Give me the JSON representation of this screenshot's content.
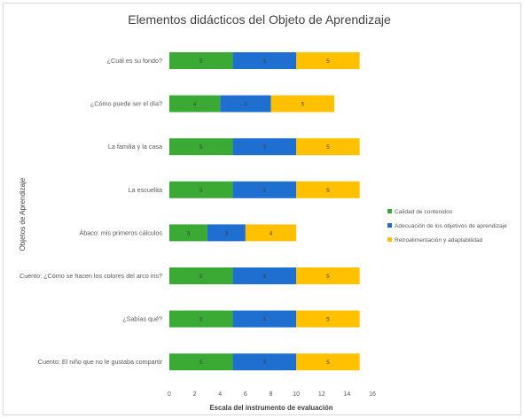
{
  "chart_data": {
    "type": "bar",
    "orientation": "horizontal",
    "stacked": true,
    "title": "Elementos didácticos del Objeto de Aprendizaje",
    "xlabel": "Escala del instrumento de evaluación",
    "ylabel": "Objetos de Aprendizaje",
    "xlim": [
      0,
      16
    ],
    "xticks": [
      "0",
      "2",
      "4",
      "6",
      "8",
      "10",
      "12",
      "14",
      "16"
    ],
    "categories": [
      "¿Cuál es su fondo?",
      "¿Cómo puede ser el día?",
      "La familia y la casa",
      "La escuelita",
      "Ábaco: mis primeros cálculos",
      "Cuento: ¿Cómo se hacen los colores del arco iris?",
      "¿Sabías qué?",
      "Cuento: El niño que no le gustaba compartir"
    ],
    "series": [
      {
        "name": "Calidad de contenidos",
        "color": "#3aaa35",
        "values": [
          5,
          4,
          5,
          5,
          3,
          5,
          5,
          5
        ]
      },
      {
        "name": "Adecuación de los objetivos de aprendizaje",
        "color": "#1f6fd1",
        "values": [
          5,
          4,
          5,
          5,
          3,
          5,
          5,
          5
        ]
      },
      {
        "name": "Retroalimentación y adaptabilidad",
        "color": "#ffc000",
        "values": [
          5,
          5,
          5,
          5,
          4,
          5,
          5,
          5
        ]
      }
    ],
    "legend_position": "right",
    "grid": false
  }
}
